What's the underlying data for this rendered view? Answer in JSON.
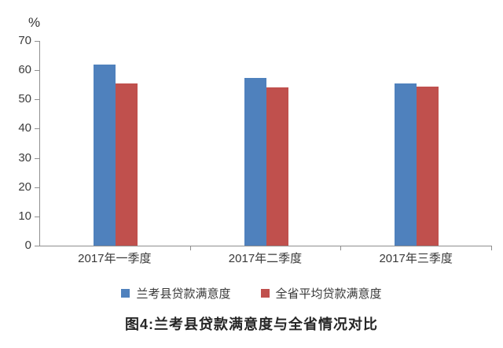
{
  "chart_data": {
    "type": "bar",
    "title": "图4:兰考县贷款满意度与全省情况对比",
    "ylabel": "%",
    "xlabel": "",
    "categories": [
      "2017年一季度",
      "2017年二季度",
      "2017年三季度"
    ],
    "series": [
      {
        "name": "兰考县贷款满意度",
        "color": "#4f81bd",
        "values": [
          62,
          57.3,
          55.4
        ]
      },
      {
        "name": "全省平均贷款满意度",
        "color": "#c0504d",
        "values": [
          55.5,
          54,
          54.5
        ]
      }
    ],
    "ylim": [
      0,
      70
    ],
    "yticks": [
      0,
      10,
      20,
      30,
      40,
      50,
      60,
      70
    ],
    "grid": false,
    "legend_position": "bottom"
  },
  "colors": {
    "axis": "#8f8f8f",
    "tick_text": "#3c3c3c",
    "title_text": "#262626"
  }
}
